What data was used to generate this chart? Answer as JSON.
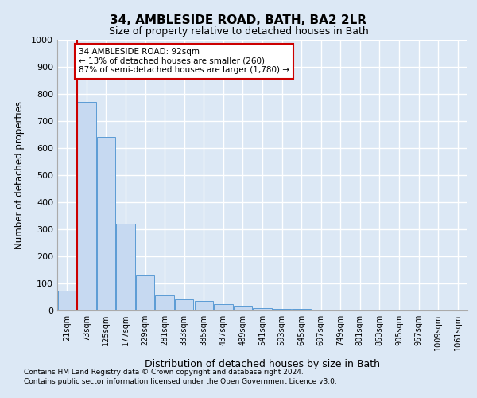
{
  "title": "34, AMBLESIDE ROAD, BATH, BA2 2LR",
  "subtitle": "Size of property relative to detached houses in Bath",
  "xlabel": "Distribution of detached houses by size in Bath",
  "ylabel": "Number of detached properties",
  "bar_color": "#c6d9f1",
  "bar_edge_color": "#5b9bd5",
  "categories": [
    "21sqm",
    "73sqm",
    "125sqm",
    "177sqm",
    "229sqm",
    "281sqm",
    "333sqm",
    "385sqm",
    "437sqm",
    "489sqm",
    "541sqm",
    "593sqm",
    "645sqm",
    "697sqm",
    "749sqm",
    "801sqm",
    "853sqm",
    "905sqm",
    "957sqm",
    "1009sqm",
    "1061sqm"
  ],
  "values": [
    75,
    770,
    640,
    320,
    130,
    55,
    40,
    35,
    25,
    15,
    10,
    7,
    5,
    3,
    2,
    2,
    1,
    1,
    1,
    1,
    1
  ],
  "ylim": [
    0,
    1000
  ],
  "yticks": [
    0,
    100,
    200,
    300,
    400,
    500,
    600,
    700,
    800,
    900,
    1000
  ],
  "vline_x": 0.5,
  "annotation_text": "34 AMBLESIDE ROAD: 92sqm\n← 13% of detached houses are smaller (260)\n87% of semi-detached houses are larger (1,780) →",
  "annotation_box_color": "#ffffff",
  "annotation_box_edge": "#cc0000",
  "footer_line1": "Contains HM Land Registry data © Crown copyright and database right 2024.",
  "footer_line2": "Contains public sector information licensed under the Open Government Licence v3.0.",
  "bg_color": "#dce8f5",
  "plot_bg_color": "#dce8f5",
  "grid_color": "#ffffff"
}
